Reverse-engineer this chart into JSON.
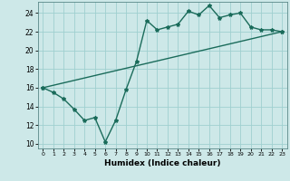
{
  "xlabel": "Humidex (Indice chaleur)",
  "ylabel": "",
  "bg_color": "#cde8e8",
  "grid_color": "#9fcfcf",
  "line_color": "#1a6b5a",
  "xlim": [
    -0.5,
    23.5
  ],
  "ylim": [
    9.5,
    25.2
  ],
  "yticks": [
    10,
    12,
    14,
    16,
    18,
    20,
    22,
    24
  ],
  "xticks": [
    0,
    1,
    2,
    3,
    4,
    5,
    6,
    7,
    8,
    9,
    10,
    11,
    12,
    13,
    14,
    15,
    16,
    17,
    18,
    19,
    20,
    21,
    22,
    23
  ],
  "line1_x": [
    0,
    1,
    2,
    3,
    4,
    5,
    6,
    7,
    8,
    9,
    10,
    11,
    12,
    13,
    14,
    15,
    16,
    17,
    18,
    19,
    20,
    21,
    22,
    23
  ],
  "line1_y": [
    16.0,
    15.5,
    14.8,
    13.7,
    12.5,
    12.8,
    10.2,
    12.5,
    15.8,
    18.8,
    23.2,
    22.2,
    22.5,
    22.8,
    24.2,
    23.8,
    24.8,
    23.5,
    23.8,
    24.0,
    22.5,
    22.2,
    22.2,
    22.0
  ],
  "line2_x": [
    0,
    23
  ],
  "line2_y": [
    16.0,
    22.0
  ],
  "marker": "*",
  "markersize": 3,
  "linewidth": 1.0
}
